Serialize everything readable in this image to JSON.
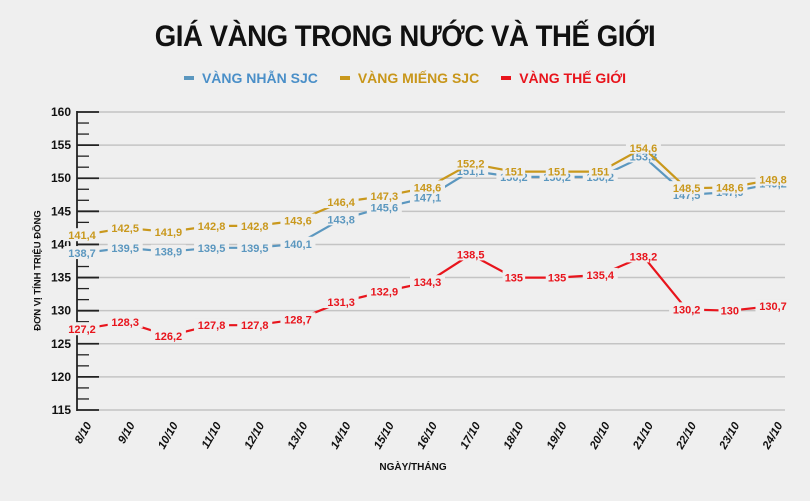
{
  "title": "GIÁ VÀNG TRONG NƯỚC VÀ THẾ GIỚI",
  "legend": [
    {
      "label": "VÀNG NHẪN SJC",
      "color": "#4a8fc8",
      "line_color": "#5b97bf"
    },
    {
      "label": "VÀNG MIẾNG SJC",
      "color": "#c8961a",
      "line_color": "#c9981c"
    },
    {
      "label": "VÀNG THẾ GIỚI",
      "color": "#e8141c",
      "line_color": "#e8141c"
    }
  ],
  "axis": {
    "ylabel": "ĐƠN VỊ TÍNH TRIỆU ĐỒNG",
    "xlabel": "NGÀY/THÁNG"
  },
  "chart_data": {
    "type": "line",
    "title": "GIÁ VÀNG TRONG NƯỚC VÀ THẾ GIỚI",
    "xlabel": "NGÀY/THÁNG",
    "ylabel": "ĐƠN VỊ TÍNH TRIỆU ĐỒNG",
    "ylim": [
      115,
      160
    ],
    "yticks": [
      115,
      120,
      125,
      130,
      135,
      140,
      145,
      150,
      155,
      160
    ],
    "grid": true,
    "legend_position": "top",
    "categories": [
      "8/10",
      "9/10",
      "10/10",
      "11/10",
      "12/10",
      "13/10",
      "14/10",
      "15/10",
      "16/10",
      "17/10",
      "18/10",
      "19/10",
      "20/10",
      "21/10",
      "22/10",
      "23/10",
      "24/10"
    ],
    "series": [
      {
        "name": "VÀNG NHẪN SJC",
        "color": "#5b97bf",
        "values": [
          138.7,
          139.5,
          138.9,
          139.5,
          139.5,
          140.1,
          143.8,
          145.6,
          147.1,
          151.1,
          150.2,
          150.2,
          150.2,
          153.3,
          147.5,
          147.9,
          149.2
        ],
        "labels": [
          "138,7",
          "139,5",
          "138,9",
          "139,5",
          "139,5",
          "140,1",
          "143,8",
          "145,6",
          "147,1",
          "151,1",
          "150,2",
          "150,2",
          "150,2",
          "153,3",
          "147,5",
          "147,9",
          "149,2"
        ]
      },
      {
        "name": "VÀNG MIẾNG SJC",
        "color": "#c9981c",
        "values": [
          141.4,
          142.5,
          141.9,
          142.8,
          142.8,
          143.6,
          146.4,
          147.3,
          148.6,
          152.2,
          151,
          151,
          151,
          154.6,
          148.5,
          148.6,
          149.8
        ],
        "labels": [
          "141,4",
          "142,5",
          "141,9",
          "142,8",
          "142,8",
          "143,6",
          "146,4",
          "147,3",
          "148,6",
          "152,2",
          "151",
          "151",
          "151",
          "154,6",
          "148,5",
          "148,6",
          "149,8"
        ]
      },
      {
        "name": "VÀNG THẾ GIỚI",
        "color": "#e8141c",
        "values": [
          127.2,
          128.3,
          126.2,
          127.8,
          127.8,
          128.7,
          131.3,
          132.9,
          134.3,
          138.5,
          135,
          135,
          135.4,
          138.2,
          130.2,
          130,
          130.7
        ],
        "labels": [
          "127,2",
          "128,3",
          "126,2",
          "127,8",
          "127,8",
          "128,7",
          "131,3",
          "132,9",
          "134,3",
          "138,5",
          "135",
          "135",
          "135,4",
          "138,2",
          "130,2",
          "130",
          "130,7"
        ]
      }
    ]
  }
}
